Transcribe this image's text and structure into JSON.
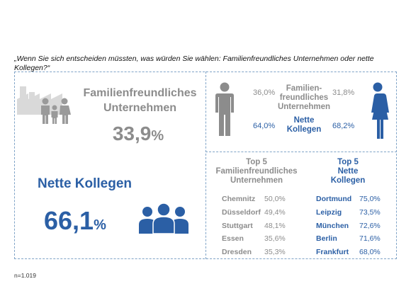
{
  "question": "„Wenn Sie sich entscheiden müssten, was würden Sie wählen: Familienfreundliches Unternehmen oder nette Kollegen?“",
  "colors": {
    "gray": "#8c8c8c",
    "blue": "#2b5fa5",
    "border": "#7fa3c7"
  },
  "icons": [
    "factory-family-icon",
    "man-icon",
    "woman-icon",
    "colleagues-group-icon"
  ],
  "chart_data": {
    "type": "table",
    "overall": [
      {
        "label_line1": "Familienfreundliches",
        "label_line2": "Unternehmen",
        "value": 33.9,
        "display": "33,9",
        "unit": "%"
      },
      {
        "label": "Nette Kollegen",
        "value": 66.1,
        "display": "66,1",
        "unit": "%"
      }
    ],
    "by_gender": {
      "rows": [
        {
          "label_line1": "Familien-",
          "label_line2": "freundliches",
          "label_line3": "Unternehmen",
          "men": "36,0%",
          "women": "31,8%"
        },
        {
          "label_line1": "Nette",
          "label_line2": "Kollegen",
          "men": "64,0%",
          "women": "68,2%"
        }
      ]
    },
    "top5_family": {
      "title_line1": "Top 5",
      "title_line2": "Familienfreundliches",
      "title_line3": "Unternehmen",
      "rows": [
        {
          "city": "Chemnitz",
          "value": "50,0%"
        },
        {
          "city": "Düsseldorf",
          "value": "49,4%"
        },
        {
          "city": "Stuttgart",
          "value": "48,1%"
        },
        {
          "city": "Essen",
          "value": "35,6%"
        },
        {
          "city": "Dresden",
          "value": "35,3%"
        }
      ]
    },
    "top5_colleagues": {
      "title_line1": "Top 5",
      "title_line2": "Nette",
      "title_line3": "Kollegen",
      "rows": [
        {
          "city": "Dortmund",
          "value": "75,0%"
        },
        {
          "city": "Leipzig",
          "value": "73,5%"
        },
        {
          "city": "München",
          "value": "72,6%"
        },
        {
          "city": "Berlin",
          "value": "71,6%"
        },
        {
          "city": "Frankfurt",
          "value": "68,0%"
        }
      ]
    }
  },
  "footnote": "n=1.019"
}
